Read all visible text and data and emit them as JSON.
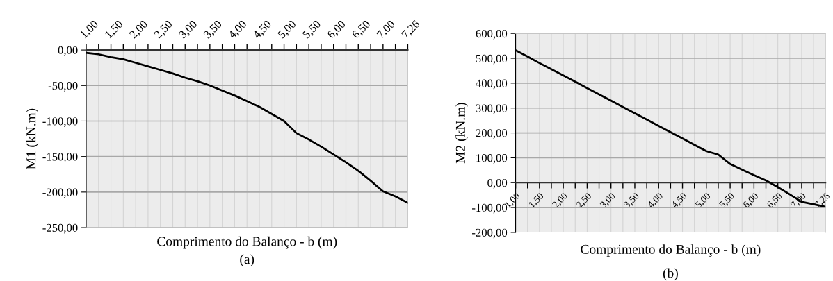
{
  "chart_data": [
    {
      "type": "line",
      "categories": [
        "1,00",
        null,
        "1,50",
        null,
        "2,00",
        null,
        "2,50",
        null,
        "3,00",
        null,
        "3,50",
        null,
        "4,00",
        null,
        "4,50",
        null,
        "5,00",
        null,
        "5,50",
        null,
        "6,00",
        null,
        "6,50",
        null,
        "7,00",
        null,
        "7,26"
      ],
      "series": [
        {
          "color": "#000000",
          "values": [
            -4,
            -6,
            -10,
            -13,
            -18,
            -23,
            -28,
            -33,
            -39,
            -44,
            -50,
            -57,
            -64,
            -72,
            -80,
            -90,
            -100,
            -117,
            -126,
            -136,
            -147,
            -158,
            -170,
            -184,
            -199,
            -206,
            -215
          ]
        }
      ],
      "ylabel": "M1 (kN.m)",
      "xlabel": "Comprimento do Balanço - b (m)",
      "annotations": [
        "(a)"
      ],
      "ylim": [
        -250,
        0
      ],
      "yticks": [
        {
          "value": 0,
          "label": "0,00"
        },
        {
          "value": -50,
          "label": "-50,00"
        },
        {
          "value": -100,
          "label": "-100,00"
        },
        {
          "value": -150,
          "label": "-150,00"
        },
        {
          "value": -200,
          "label": "-200,00"
        },
        {
          "value": -250,
          "label": "-250,00"
        }
      ],
      "grid": true,
      "marker": "none",
      "line_style": "solid"
    },
    {
      "type": "line",
      "categories": [
        "1,00",
        null,
        "1,50",
        null,
        "2,00",
        null,
        "2,50",
        null,
        "3,00",
        null,
        "3,50",
        null,
        "4,00",
        null,
        "4,50",
        null,
        "5,00",
        null,
        "5,50",
        null,
        "6,00",
        null,
        "6,50",
        null,
        "7,00",
        null,
        "7,26"
      ],
      "series": [
        {
          "color": "#000000",
          "values": [
            532,
            507,
            481,
            456,
            431,
            406,
            380,
            355,
            330,
            304,
            279,
            254,
            228,
            203,
            178,
            152,
            127,
            113,
            75,
            52,
            30,
            9,
            -18,
            -47,
            -77,
            -87,
            -97
          ]
        }
      ],
      "ylabel": "M2 (kN.m)",
      "xlabel": "Comprimento do Balanço - b (m)",
      "annotations": [
        "(b)"
      ],
      "ylim": [
        -200,
        600
      ],
      "yticks": [
        {
          "value": 600,
          "label": "600,00"
        },
        {
          "value": 500,
          "label": "500,00"
        },
        {
          "value": 400,
          "label": "400,00"
        },
        {
          "value": 300,
          "label": "300,00"
        },
        {
          "value": 200,
          "label": "200,00"
        },
        {
          "value": 100,
          "label": "100,00"
        },
        {
          "value": 0,
          "label": "0,00"
        },
        {
          "value": -100,
          "label": "-100,00"
        },
        {
          "value": -200,
          "label": "-200,00"
        }
      ],
      "grid": true,
      "marker": "none",
      "line_style": "solid"
    }
  ]
}
